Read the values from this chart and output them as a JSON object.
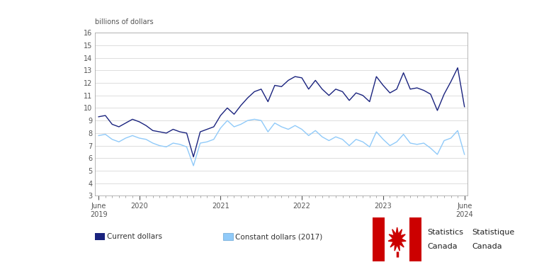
{
  "ylabel": "billions of dollars",
  "ylim": [
    3,
    16
  ],
  "yticks": [
    3,
    4,
    5,
    6,
    7,
    8,
    9,
    10,
    11,
    12,
    13,
    14,
    15,
    16
  ],
  "xtick_labels": [
    "June\n2019",
    "2020",
    "2021",
    "2022",
    "2023",
    "June\n2024"
  ],
  "xtick_positions": [
    0,
    6,
    18,
    30,
    42,
    54
  ],
  "current_dollars": [
    9.3,
    9.4,
    8.7,
    8.5,
    8.8,
    9.1,
    8.9,
    8.6,
    8.2,
    8.1,
    8.0,
    8.3,
    8.1,
    8.0,
    6.1,
    8.1,
    8.3,
    8.5,
    9.4,
    10.0,
    9.5,
    10.2,
    10.8,
    11.3,
    11.5,
    10.5,
    11.8,
    11.7,
    12.2,
    12.5,
    12.4,
    11.5,
    12.2,
    11.5,
    11.0,
    11.5,
    11.3,
    10.6,
    11.2,
    11.0,
    10.5,
    12.5,
    11.8,
    11.2,
    11.5,
    12.8,
    11.5,
    11.6,
    11.4,
    11.1,
    9.8,
    11.1,
    12.1,
    13.2,
    10.1
  ],
  "constant_dollars": [
    7.8,
    7.9,
    7.5,
    7.3,
    7.6,
    7.8,
    7.6,
    7.5,
    7.2,
    7.0,
    6.9,
    7.2,
    7.1,
    6.9,
    5.4,
    7.2,
    7.3,
    7.5,
    8.4,
    9.0,
    8.5,
    8.7,
    9.0,
    9.1,
    9.0,
    8.1,
    8.8,
    8.5,
    8.3,
    8.6,
    8.3,
    7.8,
    8.2,
    7.7,
    7.4,
    7.7,
    7.5,
    7.0,
    7.5,
    7.3,
    6.9,
    8.1,
    7.5,
    7.0,
    7.3,
    7.9,
    7.2,
    7.1,
    7.2,
    6.8,
    6.3,
    7.4,
    7.6,
    8.2,
    6.3
  ],
  "current_color": "#1a237e",
  "constant_color": "#90caf9",
  "bg_color": "#ffffff",
  "plot_bg_color": "#ffffff",
  "grid_color": "#d0d0d0",
  "spine_color": "#aaaaaa",
  "font_color": "#555555",
  "legend_current": "Current dollars",
  "legend_constant": "Constant dollars (2017)"
}
